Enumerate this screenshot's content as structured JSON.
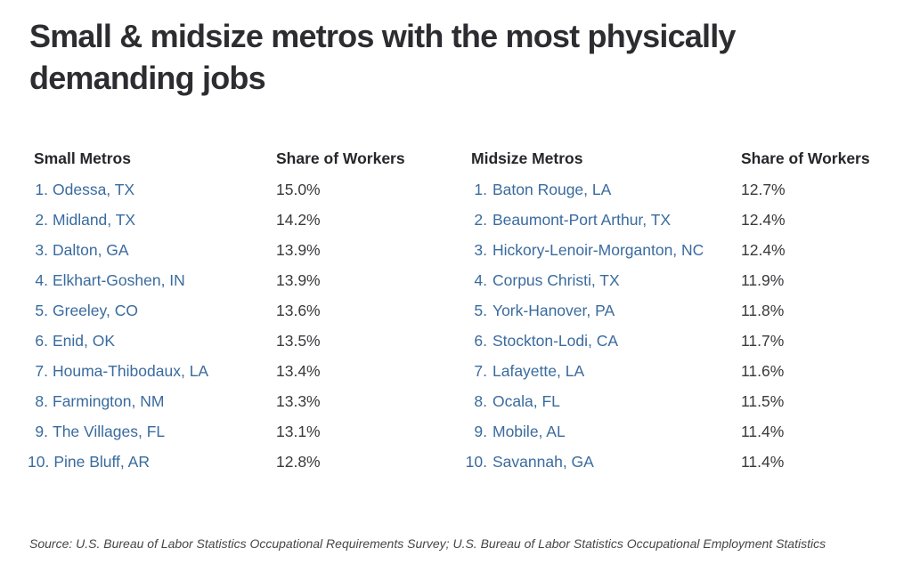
{
  "title": {
    "line1": "Small & midsize metros with the most physically",
    "line2": "demanding jobs"
  },
  "source": "Source: U.S. Bureau of Labor Statistics Occupational Requirements Survey; U.S. Bureau of Labor Statistics Occupational Employment Statistics",
  "colors": {
    "title_text": "#2d2d31",
    "header_text": "#26262b",
    "metro_link_blue": "#3a6b9e",
    "share_text": "#3a3a3e",
    "source_text": "#46464a",
    "background": "#ffffff"
  },
  "chart_data": [
    {
      "type": "table",
      "metro_header": "Small Metros",
      "share_header": "Share of Workers",
      "rows": [
        {
          "rank": "1.",
          "metro": "Odessa, TX",
          "share": "15.0%",
          "value": 15.0
        },
        {
          "rank": "2.",
          "metro": "Midland, TX",
          "share": "14.2%",
          "value": 14.2
        },
        {
          "rank": "3.",
          "metro": "Dalton, GA",
          "share": "13.9%",
          "value": 13.9
        },
        {
          "rank": "4.",
          "metro": "Elkhart-Goshen, IN",
          "share": "13.9%",
          "value": 13.9
        },
        {
          "rank": "5.",
          "metro": "Greeley, CO",
          "share": "13.6%",
          "value": 13.6
        },
        {
          "rank": "6.",
          "metro": "Enid, OK",
          "share": "13.5%",
          "value": 13.5
        },
        {
          "rank": "7.",
          "metro": "Houma-Thibodaux, LA",
          "share": "13.4%",
          "value": 13.4
        },
        {
          "rank": "8.",
          "metro": "Farmington, NM",
          "share": "13.3%",
          "value": 13.3
        },
        {
          "rank": "9.",
          "metro": "The Villages, FL",
          "share": "13.1%",
          "value": 13.1
        },
        {
          "rank": "10.",
          "metro": "Pine Bluff, AR",
          "share": "12.8%",
          "value": 12.8
        }
      ]
    },
    {
      "type": "table",
      "metro_header": "Midsize Metros",
      "share_header": "Share of Workers",
      "rows": [
        {
          "rank": "1.",
          "metro": "Baton Rouge, LA",
          "share": "12.7%",
          "value": 12.7
        },
        {
          "rank": "2.",
          "metro": "Beaumont-Port Arthur, TX",
          "share": "12.4%",
          "value": 12.4
        },
        {
          "rank": "3.",
          "metro": "Hickory-Lenoir-Morganton, NC",
          "share": "12.4%",
          "value": 12.4
        },
        {
          "rank": "4.",
          "metro": "Corpus Christi, TX",
          "share": "11.9%",
          "value": 11.9
        },
        {
          "rank": "5.",
          "metro": "York-Hanover, PA",
          "share": "11.8%",
          "value": 11.8
        },
        {
          "rank": "6.",
          "metro": "Stockton-Lodi, CA",
          "share": "11.7%",
          "value": 11.7
        },
        {
          "rank": "7.",
          "metro": "Lafayette, LA",
          "share": "11.6%",
          "value": 11.6
        },
        {
          "rank": "8.",
          "metro": "Ocala, FL",
          "share": "11.5%",
          "value": 11.5
        },
        {
          "rank": "9.",
          "metro": "Mobile, AL",
          "share": "11.4%",
          "value": 11.4
        },
        {
          "rank": "10.",
          "metro": "Savannah, GA",
          "share": "11.4%",
          "value": 11.4
        }
      ]
    }
  ]
}
